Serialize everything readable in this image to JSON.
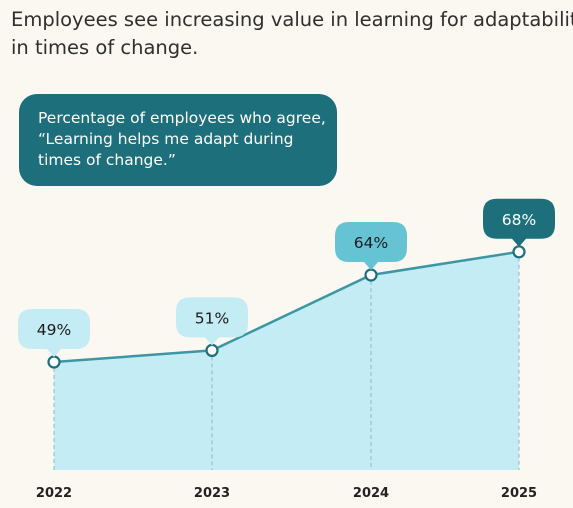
{
  "title_lines": [
    "Employees see increasing value in learning for adaptability",
    "in times of change."
  ],
  "subtitle_lines": [
    "Percentage of employees who agree,",
    "“Learning helps me adapt during",
    "times of change.”"
  ],
  "colors": {
    "area_fill": "#c4ecf4",
    "line": "#3c96a3",
    "bubble_light": "#c4ecf4",
    "bubble_mid": "#66c3d3",
    "bubble_dark": "#1d6f7b",
    "subtitle_bg": "#1d6f7b"
  },
  "chart_data": {
    "type": "area",
    "title": "Employees see increasing value in learning for adaptability in times of change.",
    "subtitle": "Percentage of employees who agree, “Learning helps me adapt during times of change.”",
    "categories": [
      "2022",
      "2023",
      "2024",
      "2025"
    ],
    "series": [
      {
        "values": [
          49,
          51,
          64,
          68
        ],
        "labels": [
          "49%",
          "51%",
          "64%",
          "68%"
        ],
        "bubble_styles": [
          "light",
          "light",
          "mid",
          "dark"
        ]
      }
    ],
    "grid": false,
    "legend": "none"
  }
}
